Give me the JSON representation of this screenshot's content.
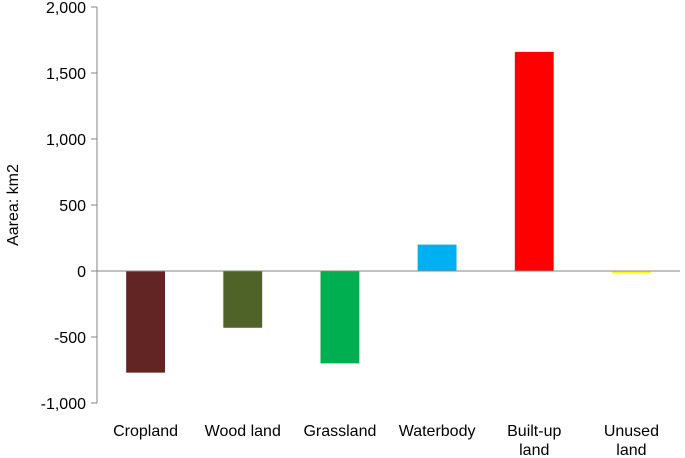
{
  "chart_data": {
    "type": "bar",
    "title": "",
    "xlabel": "",
    "ylabel": "Aarea: km2",
    "ylim": [
      -1000,
      2000
    ],
    "yticks": [
      -1000,
      -500,
      0,
      500,
      1000,
      1500,
      2000
    ],
    "ytick_labels": [
      "-1,000",
      "-500",
      "0",
      "500",
      "1,000",
      "1,500",
      "2,000"
    ],
    "grid": false,
    "legend": "none",
    "categories": [
      [
        "Cropland"
      ],
      [
        "Wood land"
      ],
      [
        "Grassland"
      ],
      [
        "Waterbody"
      ],
      [
        "Built-up",
        "land"
      ],
      [
        "Unused",
        "land"
      ]
    ],
    "values": [
      -770,
      -430,
      -700,
      200,
      1660,
      -10
    ],
    "colors": [
      "#632523",
      "#4f6228",
      "#00b050",
      "#00b0f0",
      "#ff0000",
      "#ffff00"
    ]
  }
}
